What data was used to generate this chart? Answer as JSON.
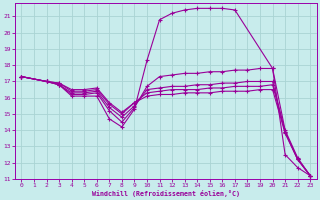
{
  "xlabel": "Windchill (Refroidissement éolien,°C)",
  "bg_color": "#c8ecec",
  "grid_color": "#aad4d4",
  "line_color": "#990099",
  "spine_color": "#9900aa",
  "xlim": [
    -0.5,
    23.5
  ],
  "ylim": [
    11,
    21.8
  ],
  "xticks": [
    0,
    1,
    2,
    3,
    4,
    5,
    6,
    7,
    8,
    9,
    10,
    11,
    12,
    13,
    14,
    15,
    16,
    17,
    18,
    19,
    20,
    21,
    22,
    23
  ],
  "yticks": [
    11,
    12,
    13,
    14,
    15,
    16,
    17,
    18,
    19,
    20,
    21
  ],
  "lines": [
    {
      "x": [
        0,
        2,
        3,
        4,
        5,
        6,
        7,
        8,
        9,
        10,
        11,
        12,
        13,
        14,
        15,
        16,
        17,
        20,
        21,
        22,
        23
      ],
      "y": [
        17.3,
        17.0,
        16.8,
        16.1,
        16.1,
        16.1,
        14.7,
        14.2,
        15.3,
        18.3,
        20.8,
        21.2,
        21.4,
        21.5,
        21.5,
        21.5,
        21.4,
        17.8,
        12.5,
        11.7,
        11.2
      ]
    },
    {
      "x": [
        0,
        2,
        3,
        4,
        5,
        6,
        7,
        8,
        9,
        10,
        11,
        12,
        13,
        14,
        15,
        16,
        17,
        18,
        19,
        20,
        21,
        22,
        23
      ],
      "y": [
        17.3,
        17.0,
        16.8,
        16.2,
        16.2,
        16.3,
        15.2,
        14.5,
        15.4,
        16.7,
        17.3,
        17.4,
        17.5,
        17.5,
        17.6,
        17.6,
        17.7,
        17.7,
        17.8,
        17.8,
        14.0,
        12.3,
        11.2
      ]
    },
    {
      "x": [
        0,
        2,
        3,
        4,
        5,
        6,
        7,
        8,
        9,
        10,
        11,
        12,
        13,
        14,
        15,
        16,
        17,
        18,
        19,
        20,
        21,
        22,
        23
      ],
      "y": [
        17.3,
        17.0,
        16.8,
        16.3,
        16.3,
        16.4,
        15.4,
        14.8,
        15.5,
        16.5,
        16.6,
        16.7,
        16.7,
        16.8,
        16.8,
        16.9,
        16.9,
        17.0,
        17.0,
        17.0,
        13.9,
        12.2,
        11.2
      ]
    },
    {
      "x": [
        0,
        2,
        3,
        4,
        5,
        6,
        7,
        8,
        9,
        10,
        11,
        12,
        13,
        14,
        15,
        16,
        17,
        18,
        19,
        20,
        21,
        22,
        23
      ],
      "y": [
        17.3,
        17.0,
        16.9,
        16.4,
        16.4,
        16.5,
        15.6,
        15.0,
        15.7,
        16.3,
        16.4,
        16.5,
        16.5,
        16.5,
        16.6,
        16.6,
        16.7,
        16.7,
        16.7,
        16.8,
        13.9,
        12.2,
        11.2
      ]
    },
    {
      "x": [
        0,
        2,
        3,
        4,
        5,
        6,
        7,
        8,
        9,
        10,
        11,
        12,
        13,
        14,
        15,
        16,
        17,
        18,
        19,
        20,
        21,
        22,
        23
      ],
      "y": [
        17.3,
        17.0,
        16.9,
        16.5,
        16.5,
        16.6,
        15.7,
        15.1,
        15.7,
        16.1,
        16.2,
        16.2,
        16.3,
        16.3,
        16.3,
        16.4,
        16.4,
        16.4,
        16.5,
        16.5,
        13.8,
        12.2,
        11.2
      ]
    }
  ]
}
